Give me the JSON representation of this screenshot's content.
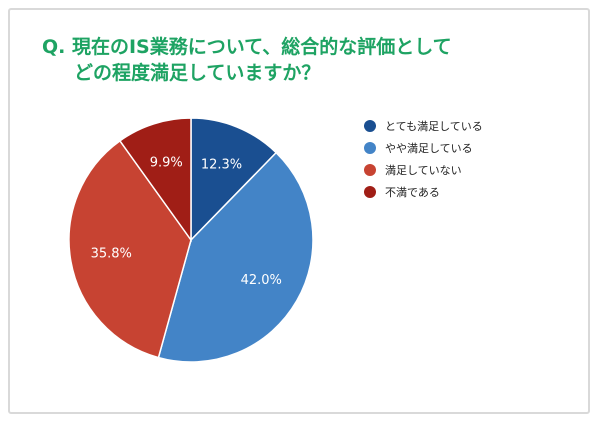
{
  "title": {
    "line1": "Q. 現在のIS業務について、総合的な評価として",
    "line2": "どの程度満足していますか？"
  },
  "chart_data": {
    "type": "pie",
    "categories": [
      "とても満足している",
      "やや満足している",
      "満足していない",
      "不満である"
    ],
    "values": [
      12.3,
      42.0,
      35.8,
      9.9
    ],
    "labels": [
      "12.3%",
      "42.0%",
      "35.8%",
      "9.9%"
    ],
    "colors": [
      "#1a4f91",
      "#4384c7",
      "#c74332",
      "#a01e16"
    ],
    "start_angle": "12 o'clock",
    "direction": "clockwise",
    "legend_position": "right"
  }
}
